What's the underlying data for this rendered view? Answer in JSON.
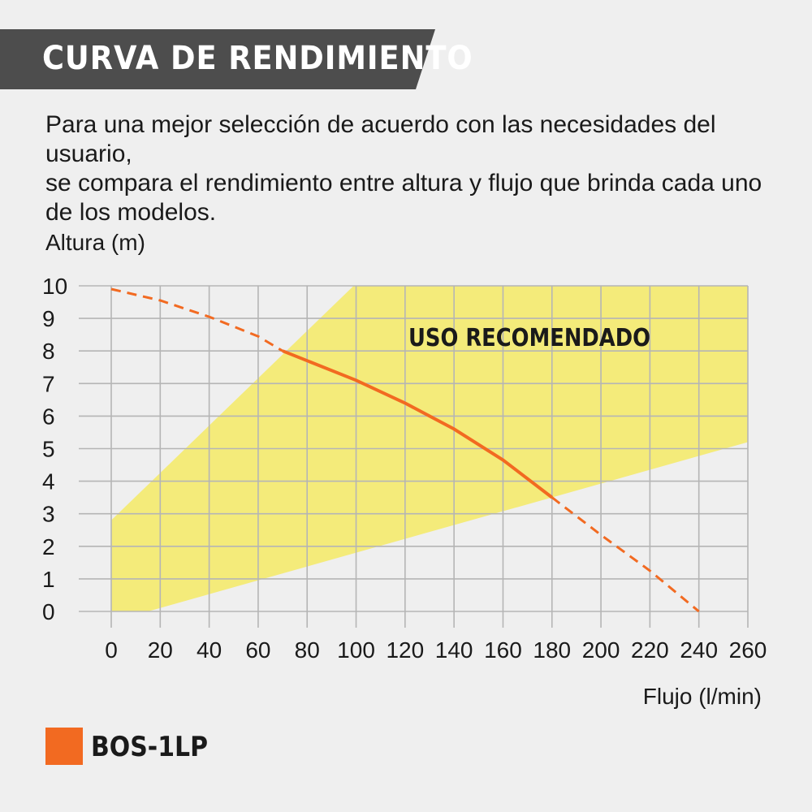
{
  "header": {
    "title": "CURVA DE RENDIMIENTO",
    "description_lines": [
      "Para una mejor selección de acuerdo con las necesidades del usuario,",
      "se compara el rendimiento entre altura y flujo que brinda cada uno",
      "de los modelos."
    ]
  },
  "colors": {
    "background": "#efefef",
    "banner": "#4d4d4d",
    "region": "#f4eb7a",
    "curve": "#f26a21",
    "grid": "#b5b5b5"
  },
  "chart_data": {
    "type": "line",
    "xlabel": "Flujo (l/min)",
    "ylabel": "Altura (m)",
    "xlim": [
      0,
      260
    ],
    "ylim": [
      0,
      10
    ],
    "x_ticks": [
      "0",
      "20",
      "40",
      "60",
      "80",
      "100",
      "120",
      "140",
      "160",
      "180",
      "200",
      "220",
      "240",
      "260"
    ],
    "y_ticks": [
      "0",
      "1",
      "2",
      "3",
      "4",
      "5",
      "6",
      "7",
      "8",
      "9",
      "10"
    ],
    "grid": true,
    "legend_position": "bottom-left",
    "recommended_region": {
      "label": "USO RECOMENDADO",
      "polygon": [
        [
          0,
          0
        ],
        [
          15,
          0
        ],
        [
          260,
          5.2
        ],
        [
          260,
          10
        ],
        [
          99,
          10
        ],
        [
          0,
          2.8
        ]
      ]
    },
    "series": [
      {
        "name": "BOS-1LP",
        "color": "#f26a21",
        "points": [
          [
            0,
            9.9
          ],
          [
            20,
            9.55
          ],
          [
            40,
            9.05
          ],
          [
            60,
            8.45
          ],
          [
            70,
            8.0
          ],
          [
            80,
            7.7
          ],
          [
            100,
            7.1
          ],
          [
            120,
            6.4
          ],
          [
            140,
            5.6
          ],
          [
            160,
            4.65
          ],
          [
            180,
            3.5
          ],
          [
            200,
            2.35
          ],
          [
            220,
            1.25
          ],
          [
            240,
            0
          ]
        ],
        "solid_range": [
          70,
          180
        ]
      }
    ]
  }
}
